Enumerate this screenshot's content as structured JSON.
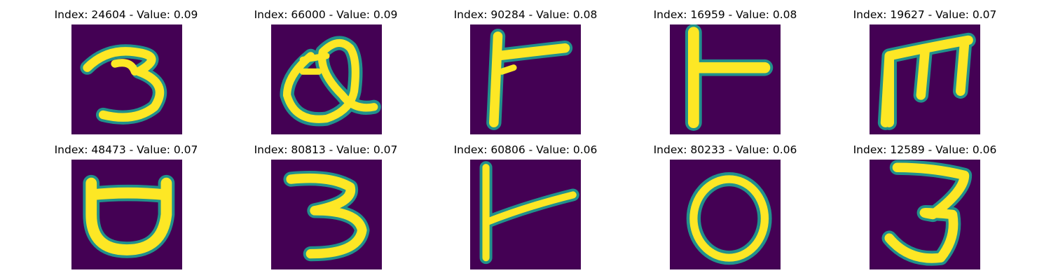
{
  "palette": {
    "background": "#440154",
    "edge": "#21918c",
    "mid": "#5ec962",
    "stroke": "#fde725"
  },
  "panels": [
    {
      "title": "Index: 24604 - Value: 0.09",
      "depicts": "3-like glyph"
    },
    {
      "title": "Index: 66000 - Value: 0.09",
      "depicts": "Q-like glyph"
    },
    {
      "title": "Index: 90284 - Value: 0.08",
      "depicts": "T-like glyph"
    },
    {
      "title": "Index: 16959 - Value: 0.08",
      "depicts": "T-like glyph"
    },
    {
      "title": "Index: 19627 - Value: 0.07",
      "depicts": "m-like glyph"
    },
    {
      "title": "Index: 48473 - Value: 0.07",
      "depicts": "cup-like glyph"
    },
    {
      "title": "Index: 80813 - Value: 0.07",
      "depicts": "3-like glyph"
    },
    {
      "title": "Index: 60806 - Value: 0.06",
      "depicts": "T-like glyph"
    },
    {
      "title": "Index: 80233 - Value: 0.06",
      "depicts": "O-like glyph"
    },
    {
      "title": "Index: 12589 - Value: 0.06",
      "depicts": "3-like glyph"
    }
  ]
}
